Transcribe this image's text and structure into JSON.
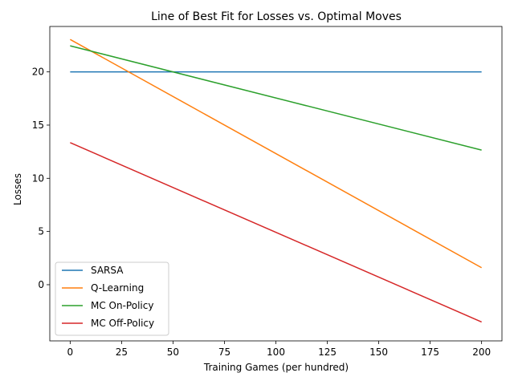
{
  "chart_data": {
    "type": "line",
    "title": "Line of Best Fit for Losses vs. Optimal Moves",
    "xlabel": "Training Games (per hundred)",
    "ylabel": "Losses",
    "xlim": [
      -9.9,
      209.9
    ],
    "ylim": [
      -5.28,
      24.27
    ],
    "xticks": [
      0,
      25,
      50,
      75,
      100,
      125,
      150,
      175,
      200
    ],
    "yticks": [
      0,
      5,
      10,
      15,
      20
    ],
    "grid": false,
    "legend_position": "lower-left",
    "series": [
      {
        "name": "SARSA",
        "color": "#1f77b4",
        "x": [
          0,
          200
        ],
        "y": [
          20.0,
          20.0
        ]
      },
      {
        "name": "Q-Learning",
        "color": "#ff7f0e",
        "x": [
          0,
          200
        ],
        "y": [
          23.05,
          1.6
        ]
      },
      {
        "name": "MC On-Policy",
        "color": "#2ca02c",
        "x": [
          0,
          200
        ],
        "y": [
          22.45,
          12.65
        ]
      },
      {
        "name": "MC Off-Policy",
        "color": "#d62728",
        "x": [
          0,
          200
        ],
        "y": [
          13.35,
          -3.5
        ]
      }
    ]
  }
}
